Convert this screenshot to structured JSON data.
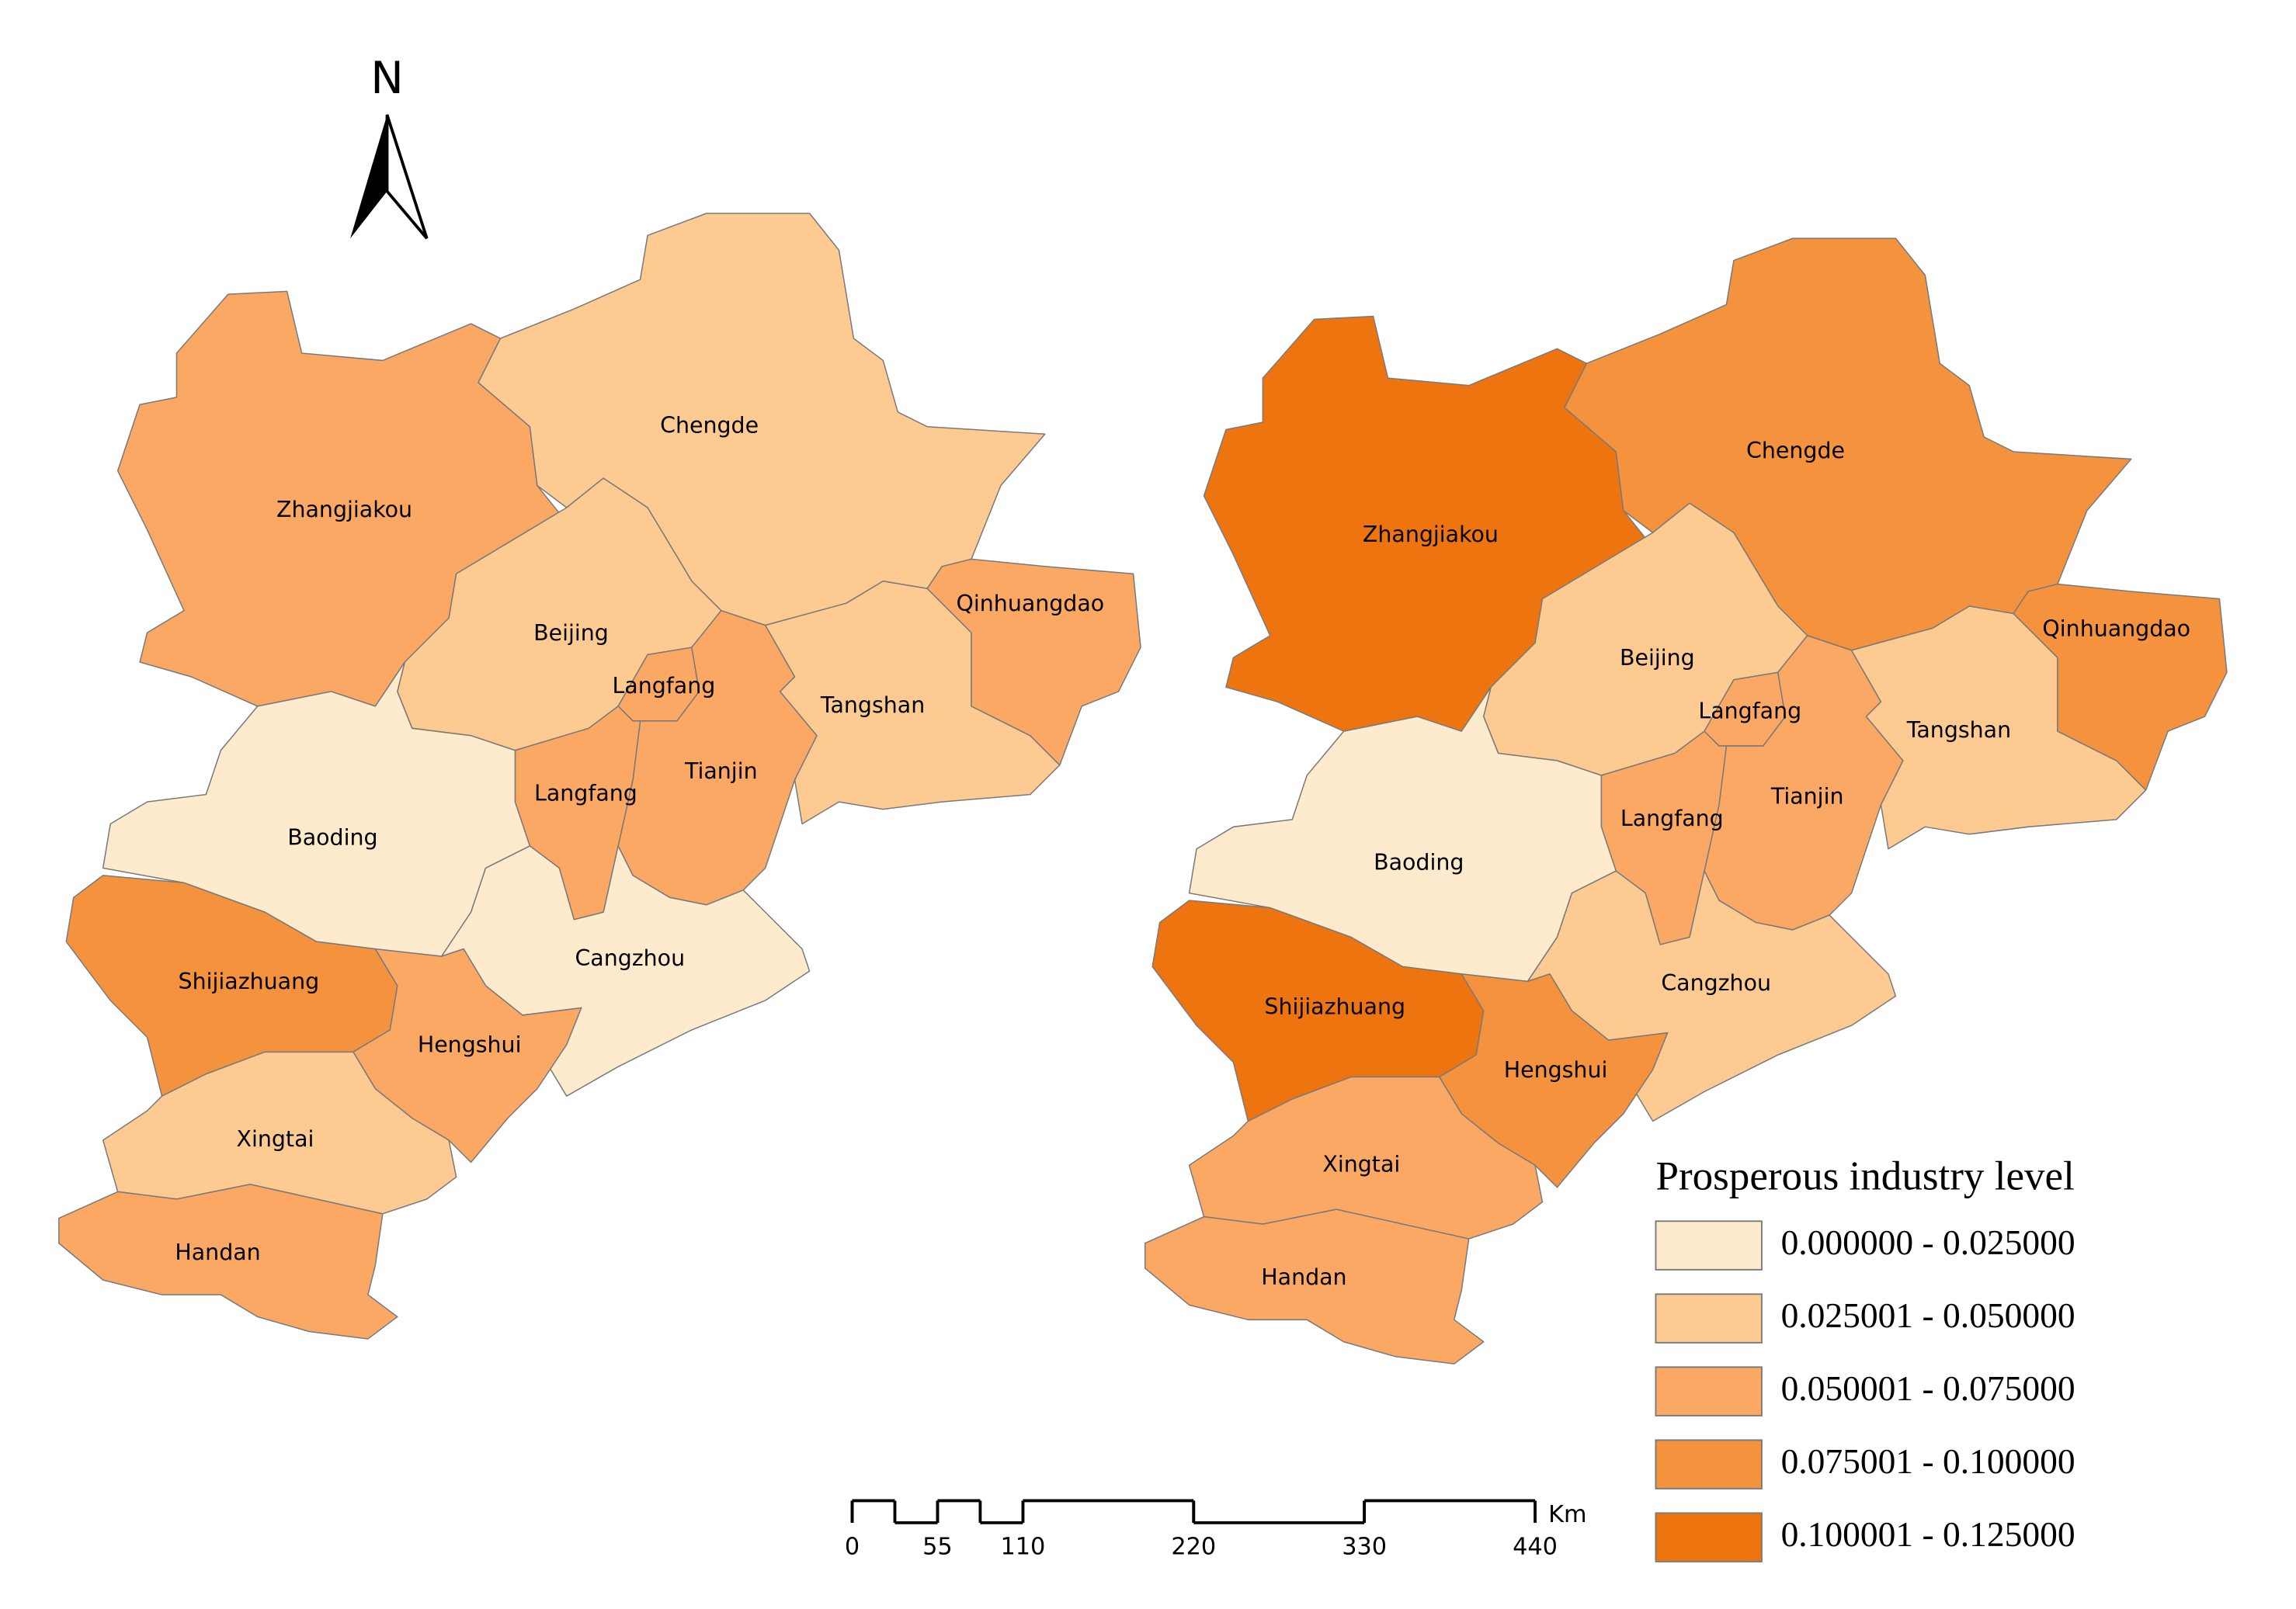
{
  "north_label": "N",
  "maps": [
    {
      "regions": [
        {
          "name": "Zhangjiakou",
          "color": "#fba864"
        },
        {
          "name": "Chengde",
          "color": "#fdcb91"
        },
        {
          "name": "Beijing",
          "color": "#fdcb91"
        },
        {
          "name": "Langfang",
          "color": "#fba864"
        },
        {
          "name": "Tianjin",
          "color": "#fba864"
        },
        {
          "name": "Langfang",
          "color": "#fba864"
        },
        {
          "name": "Tangshan",
          "color": "#fdcb91"
        },
        {
          "name": "Qinhuangdao",
          "color": "#fba864"
        },
        {
          "name": "Baoding",
          "color": "#feeacc"
        },
        {
          "name": "Cangzhou",
          "color": "#feeacc"
        },
        {
          "name": "Shijiazhuang",
          "color": "#f5923d"
        },
        {
          "name": "Hengshui",
          "color": "#fba864"
        },
        {
          "name": "Xingtai",
          "color": "#fdcb91"
        },
        {
          "name": "Handan",
          "color": "#fba864"
        }
      ]
    },
    {
      "regions": [
        {
          "name": "Zhangjiakou",
          "color": "#ee7410"
        },
        {
          "name": "Chengde",
          "color": "#f5923d"
        },
        {
          "name": "Beijing",
          "color": "#fdcb91"
        },
        {
          "name": "Langfang",
          "color": "#fba864"
        },
        {
          "name": "Tianjin",
          "color": "#fba864"
        },
        {
          "name": "Langfang",
          "color": "#fba864"
        },
        {
          "name": "Tangshan",
          "color": "#fdcb91"
        },
        {
          "name": "Qinhuangdao",
          "color": "#f5923d"
        },
        {
          "name": "Baoding",
          "color": "#feeacc"
        },
        {
          "name": "Cangzhou",
          "color": "#fdcb91"
        },
        {
          "name": "Shijiazhuang",
          "color": "#ee7410"
        },
        {
          "name": "Hengshui",
          "color": "#f5923d"
        },
        {
          "name": "Xingtai",
          "color": "#fba864"
        },
        {
          "name": "Handan",
          "color": "#fba864"
        }
      ]
    }
  ],
  "legend": {
    "title": "Prosperous industry level",
    "items": [
      {
        "label": "0.000000 - 0.025000",
        "color": "#feeacc"
      },
      {
        "label": "0.025001 - 0.050000",
        "color": "#fdcb91"
      },
      {
        "label": "0.050001 - 0.075000",
        "color": "#fba864"
      },
      {
        "label": "0.075001 - 0.100000",
        "color": "#f5923d"
      },
      {
        "label": "0.100001 - 0.125000",
        "color": "#ee7410"
      }
    ]
  },
  "scale_bar": {
    "unit": "Km",
    "ticks": [
      0,
      55,
      110,
      220,
      330,
      440
    ]
  }
}
